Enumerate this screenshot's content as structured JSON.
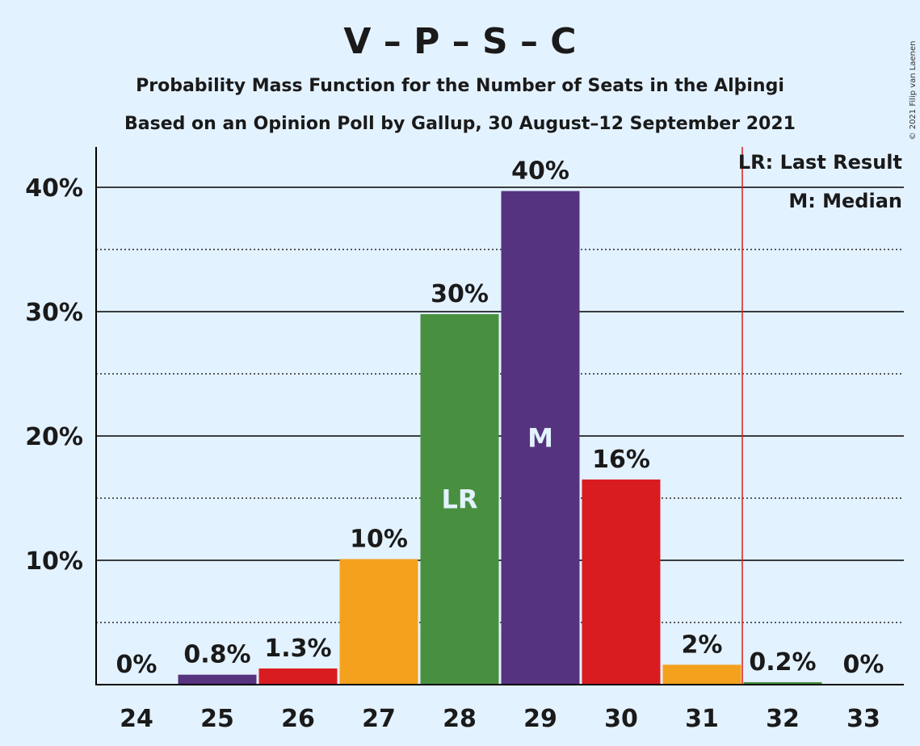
{
  "chart_data": {
    "type": "bar",
    "title": "V – P – S – C",
    "subtitle_lines": [
      "Probability Mass Function for the Number of Seats in the Alþingi",
      "Based on an Opinion Poll by Gallup, 30 August–12 September 2021"
    ],
    "copyright": "© 2021 Filip van Laenen",
    "categories": [
      "24",
      "25",
      "26",
      "27",
      "28",
      "29",
      "30",
      "31",
      "32",
      "33"
    ],
    "values": [
      0.0,
      0.8,
      1.3,
      10.1,
      29.8,
      39.7,
      16.5,
      1.6,
      0.2,
      0.0
    ],
    "data_labels": [
      "0%",
      "0.8%",
      "1.3%",
      "10%",
      "30%",
      "40%",
      "16%",
      "2%",
      "0.2%",
      "0%"
    ],
    "bar_colors": [
      "#56337f",
      "#56337f",
      "#d91c20",
      "#f4a11e",
      "#489040",
      "#56337f",
      "#d91c20",
      "#f4a11e",
      "#489040",
      "#56337f"
    ],
    "yticks": [
      10,
      20,
      30,
      40
    ],
    "ytick_labels": [
      "10%",
      "20%",
      "30%",
      "40%"
    ],
    "ylim": [
      0,
      43.5
    ],
    "minor_gridlines": [
      5,
      15,
      25,
      35
    ],
    "grid": true,
    "last_result": {
      "category": "28",
      "label": "LR"
    },
    "median": {
      "category": "29",
      "label": "M"
    },
    "majority_line_between": [
      "31",
      "32"
    ],
    "majority_line_color": "#d91c20",
    "legend": [
      "LR: Last Result",
      "M: Median"
    ],
    "legend_position": "top-right"
  }
}
